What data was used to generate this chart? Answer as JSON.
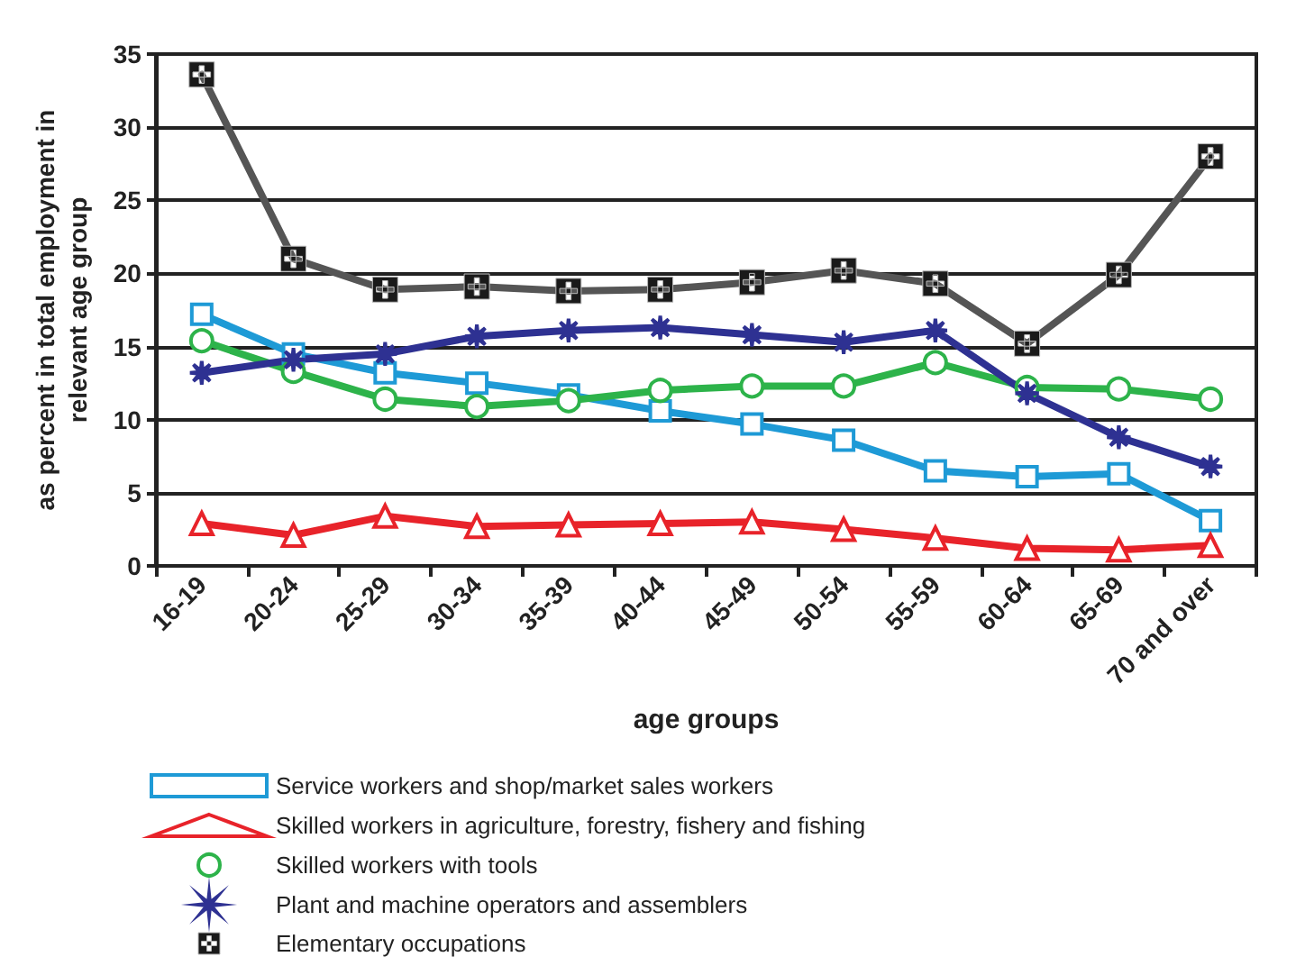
{
  "chart_data": {
    "type": "line",
    "xlabel": "age groups",
    "ylabel": "as percent in total employment in\nrelevant age group",
    "categories": [
      "16-19",
      "20-24",
      "25-29",
      "30-34",
      "35-39",
      "40-44",
      "45-49",
      "50-54",
      "55-59",
      "60-64",
      "65-69",
      "70 and over"
    ],
    "series": [
      {
        "name": "Service workers and shop/market sales workers",
        "color": "#1e9ad6",
        "marker": "square",
        "values": [
          17.2,
          14.5,
          13.2,
          12.5,
          11.7,
          10.6,
          9.7,
          8.6,
          6.5,
          6.1,
          6.3,
          3.1
        ]
      },
      {
        "name": "Skilled workers in agriculture, forestry, fishery and fishing",
        "color": "#e8232a",
        "marker": "triangle",
        "values": [
          2.9,
          2.1,
          3.4,
          2.7,
          2.8,
          2.9,
          3.0,
          2.5,
          1.9,
          1.2,
          1.1,
          1.4
        ]
      },
      {
        "name": "Skilled workers with tools",
        "color": "#2db34a",
        "marker": "circle",
        "values": [
          15.4,
          13.3,
          11.4,
          10.9,
          11.3,
          12.0,
          12.3,
          12.3,
          13.9,
          12.2,
          12.1,
          11.4
        ]
      },
      {
        "name": "Plant and machine operators and assemblers",
        "color": "#2e3192",
        "marker": "star",
        "values": [
          13.2,
          14.1,
          14.5,
          15.7,
          16.1,
          16.3,
          15.8,
          15.3,
          16.1,
          11.8,
          8.8,
          6.8
        ]
      },
      {
        "name": "Elementary occupations",
        "color": "#555555",
        "marker": "cross",
        "values": [
          33.6,
          21.0,
          18.9,
          19.1,
          18.8,
          18.9,
          19.4,
          20.2,
          19.3,
          15.2,
          19.9,
          28.0
        ]
      }
    ],
    "ylim": [
      0,
      35
    ],
    "yticks": [
      0,
      5,
      10,
      15,
      20,
      25,
      30,
      35
    ],
    "grid": "y",
    "legend": "bottom"
  }
}
